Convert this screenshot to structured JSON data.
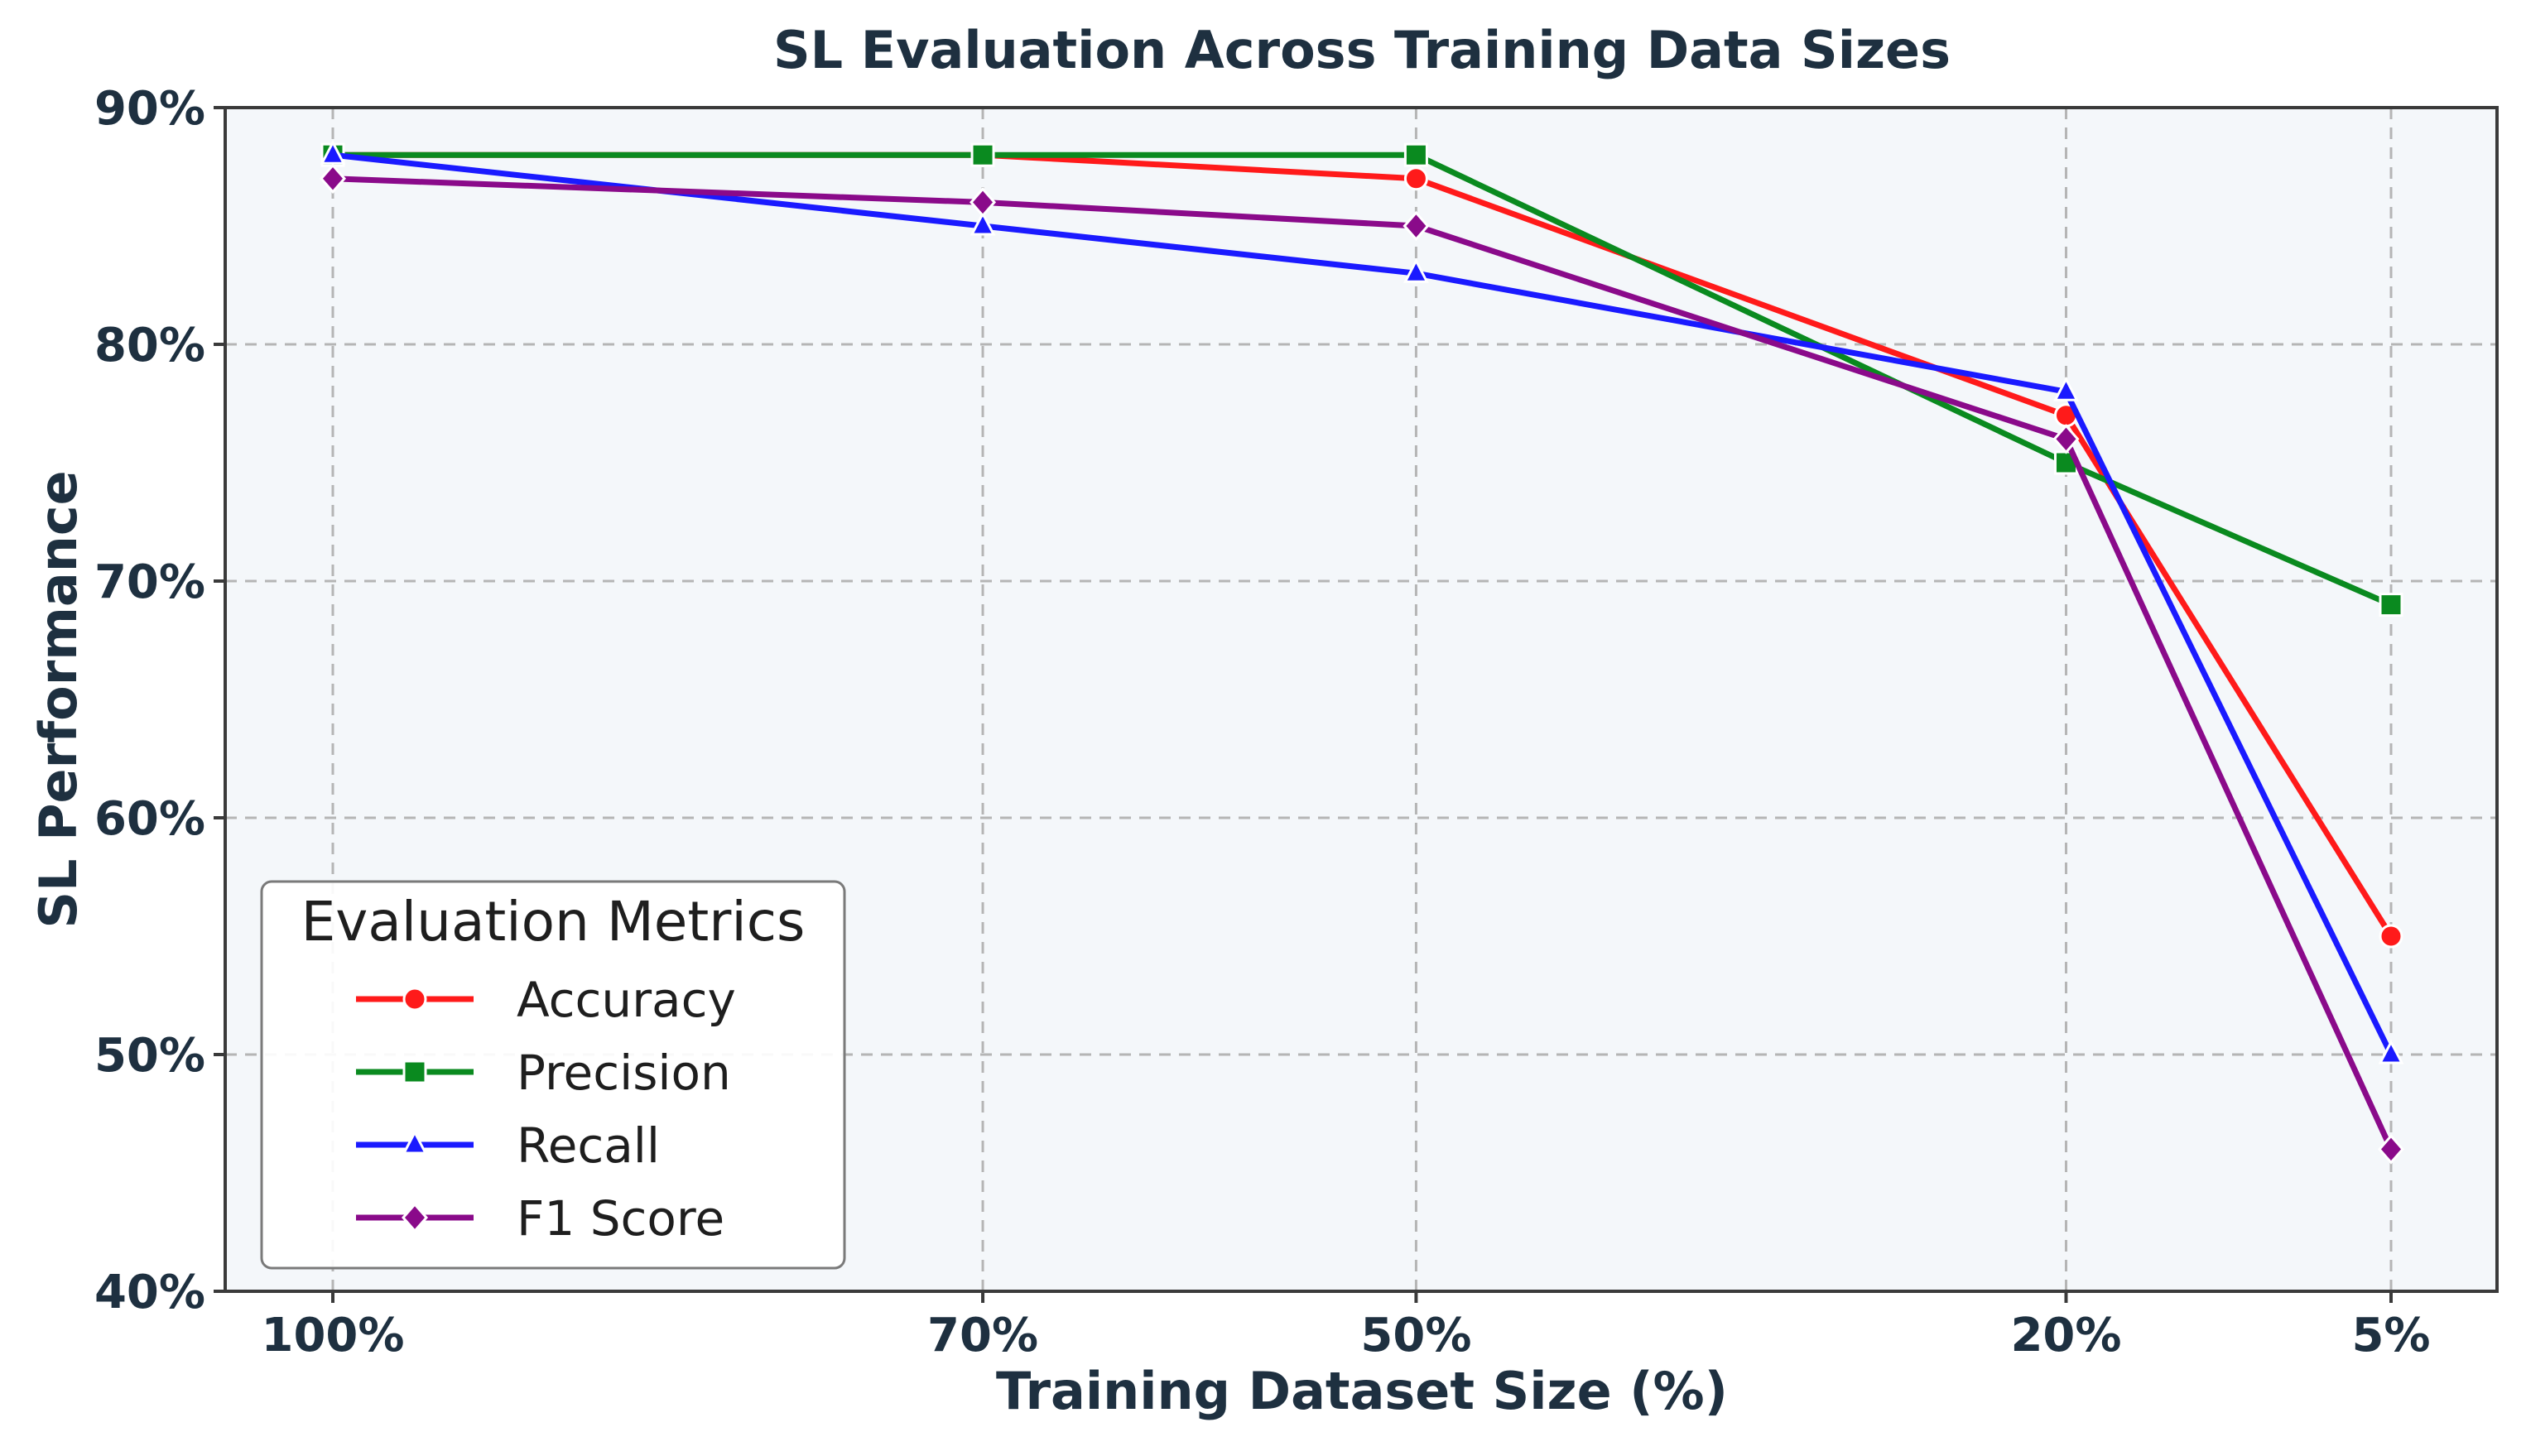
{
  "chart_data": {
    "type": "line",
    "title": "SL Evaluation Across Training Data Sizes",
    "xlabel": "Training Dataset Size (%)",
    "ylabel": "SL Performance",
    "categories": [
      "100%",
      "70%",
      "50%",
      "20%",
      "5%"
    ],
    "x": [
      100,
      70,
      50,
      20,
      5
    ],
    "ylim": [
      40,
      90
    ],
    "yticks": [
      40,
      50,
      60,
      70,
      80,
      90
    ],
    "ytick_labels": [
      "40%",
      "50%",
      "60%",
      "70%",
      "80%",
      "90%"
    ],
    "grid": true,
    "background": "#f4f7fa",
    "legend": {
      "title": "Evaluation Metrics",
      "placement": "lower-left"
    },
    "series": [
      {
        "name": "Accuracy",
        "values": [
          88,
          88,
          87,
          77,
          55
        ],
        "color": "#ff1a1a",
        "marker": "circle"
      },
      {
        "name": "Precision",
        "values": [
          88,
          88,
          88,
          75,
          69
        ],
        "color": "#0a8a1f",
        "marker": "square"
      },
      {
        "name": "Recall",
        "values": [
          88,
          85,
          83,
          78,
          50
        ],
        "color": "#1a1aff",
        "marker": "triangle"
      },
      {
        "name": "F1 Score",
        "values": [
          87,
          86,
          85,
          76,
          46
        ],
        "color": "#8a0a8a",
        "marker": "diamond"
      }
    ]
  }
}
